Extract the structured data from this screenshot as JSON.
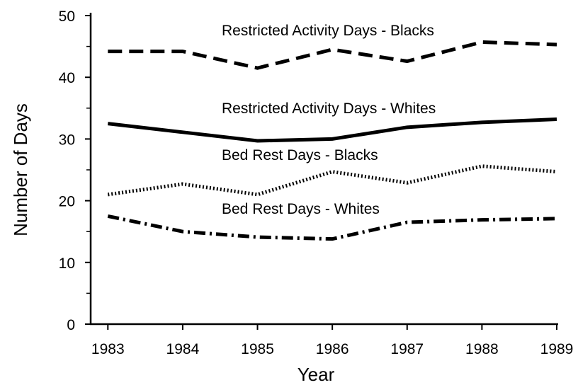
{
  "chart_data": {
    "type": "line",
    "x_label": "Year",
    "y_label": "Number of Days",
    "x": [
      1983,
      1984,
      1985,
      1986,
      1987,
      1988,
      1989
    ],
    "series": [
      {
        "name": "Restricted Activity Days - Blacks",
        "color": "#000000",
        "line_style": "dashed",
        "values": [
          44.2,
          44.2,
          41.5,
          44.5,
          42.6,
          45.7,
          45.3
        ]
      },
      {
        "name": "Restricted Activity Days - Whites",
        "color": "#000000",
        "line_style": "solid",
        "values": [
          32.5,
          31.1,
          29.7,
          30.0,
          31.9,
          32.7,
          33.2
        ]
      },
      {
        "name": "Bed Rest Days - Blacks",
        "color": "#000000",
        "line_style": "dotted",
        "values": [
          21.0,
          22.7,
          21.0,
          24.7,
          22.9,
          25.6,
          24.7
        ]
      },
      {
        "name": "Bed Rest Days - Whites",
        "color": "#000000",
        "line_style": "dashdot",
        "values": [
          17.5,
          15.0,
          14.1,
          13.8,
          16.5,
          16.9,
          17.1
        ]
      }
    ],
    "xlim": [
      1982.77,
      1989
    ],
    "xticks": [
      1983,
      1984,
      1985,
      1986,
      1987,
      1988,
      1989
    ],
    "ylim": [
      0,
      50
    ],
    "yticks": [
      0,
      10,
      20,
      30,
      40,
      50
    ],
    "yticks_minor": [
      5,
      15,
      25,
      35,
      45
    ]
  }
}
